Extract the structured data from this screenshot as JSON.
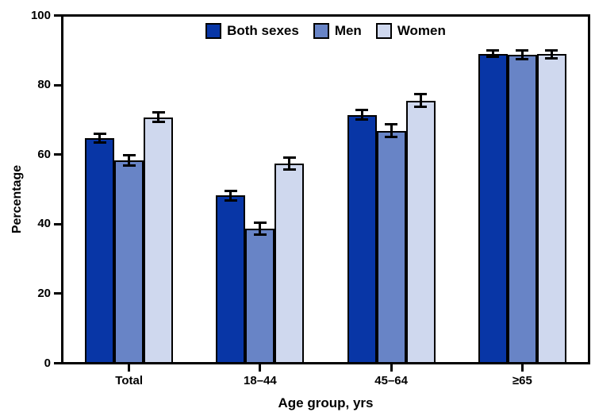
{
  "chart_data": {
    "type": "bar",
    "title": "",
    "xlabel": "Age group, yrs",
    "ylabel": "Percentage",
    "categories": [
      "Total",
      "18–44",
      "45–64",
      "≥65"
    ],
    "series": [
      {
        "name": "Both sexes",
        "color": "#0836A6",
        "values": [
          64.8,
          48.2,
          71.6,
          89.3
        ],
        "errors": [
          1.2,
          1.4,
          1.4,
          1.0
        ]
      },
      {
        "name": "Men",
        "color": "#6884C6",
        "values": [
          58.4,
          38.6,
          67.0,
          88.9
        ],
        "errors": [
          1.5,
          1.8,
          1.9,
          1.3
        ]
      },
      {
        "name": "Women",
        "color": "#CFD8EE",
        "values": [
          70.9,
          57.5,
          75.7,
          89.1
        ],
        "errors": [
          1.3,
          1.8,
          1.8,
          1.1
        ]
      }
    ],
    "ylim": [
      0,
      100
    ],
    "yticks": [
      0,
      20,
      40,
      60,
      80,
      100
    ],
    "grid": false,
    "error_bars": true,
    "legend_position": "top-center",
    "frame_color": "#000000",
    "bar_outline_color": "#000000"
  }
}
